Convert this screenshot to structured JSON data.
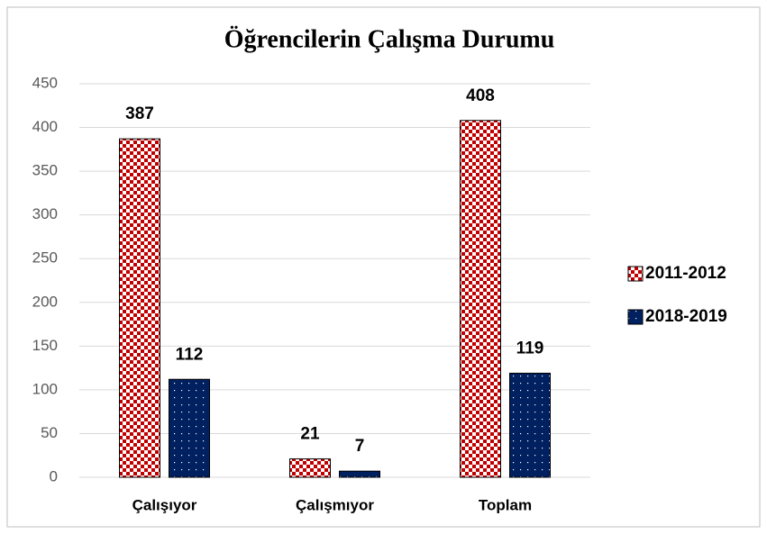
{
  "chart_data": {
    "type": "bar",
    "title": "Öğrencilerin Çalışma Durumu",
    "categories": [
      "Çalışıyor",
      "Çalışmıyor",
      "Toplam"
    ],
    "series": [
      {
        "name": "2011-2012",
        "color": "#c00000",
        "pattern": "checker",
        "values": [
          387,
          21,
          408
        ]
      },
      {
        "name": "2018-2019",
        "color": "#002060",
        "pattern": "dots",
        "values": [
          112,
          7,
          119
        ]
      }
    ],
    "ylim": [
      0,
      450
    ],
    "yticks": [
      0,
      50,
      100,
      150,
      200,
      250,
      300,
      350,
      400,
      450
    ],
    "grid": true,
    "legend": "right"
  }
}
